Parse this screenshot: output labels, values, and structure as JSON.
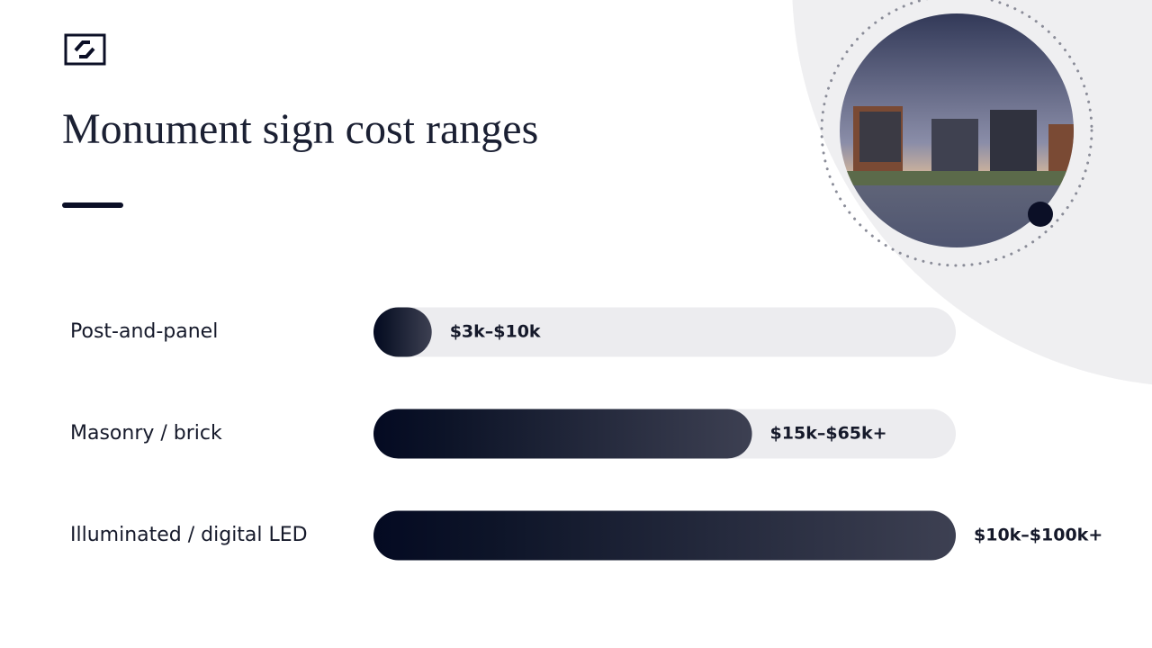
{
  "chart_data": {
    "type": "bar",
    "orientation": "horizontal",
    "title": "Monument sign cost ranges",
    "categories": [
      "Post-and-panel",
      "Masonry / brick",
      "Illuminated / digital LED"
    ],
    "values": [
      10,
      65,
      100
    ],
    "value_labels": [
      "$3k–$10k",
      "$15k–$65k+",
      "$10k–$100k+"
    ],
    "xlim": [
      0,
      100
    ],
    "color": "#1a1e30"
  }
}
